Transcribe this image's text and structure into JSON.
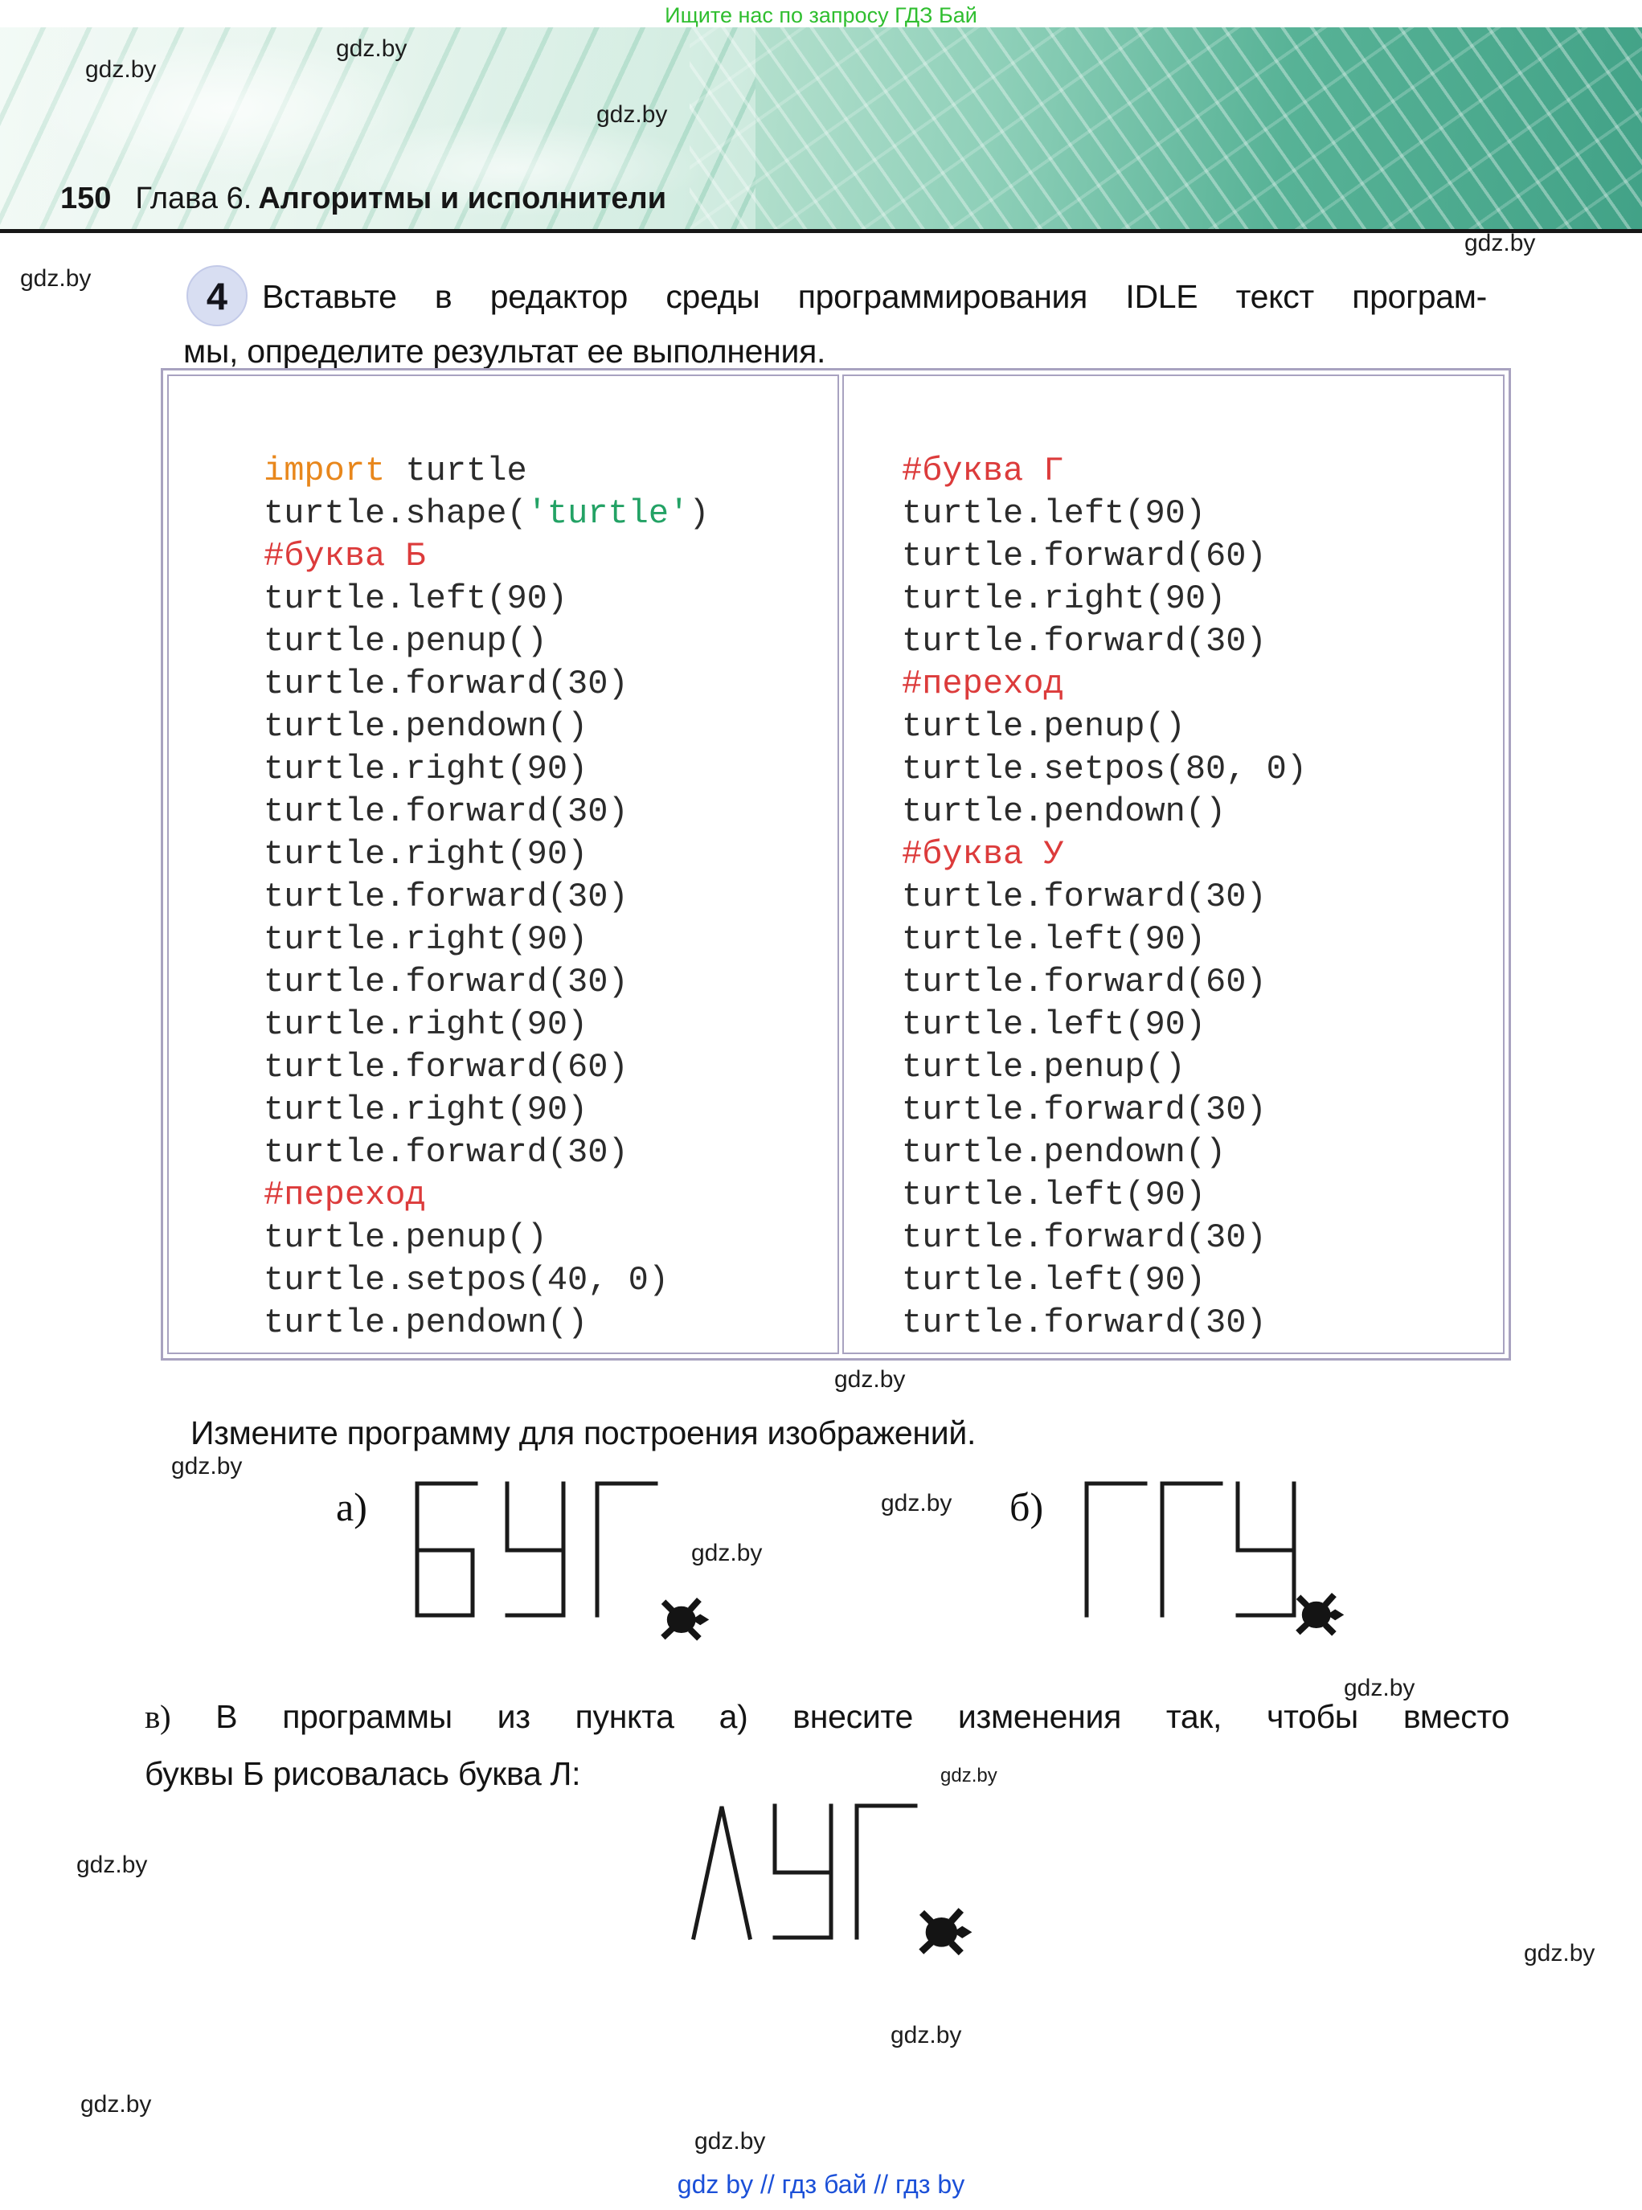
{
  "page": {
    "promo": "Ищите нас по запросу ГДЗ Бай",
    "page_number": "150",
    "chapter_prefix": "Глава 6.",
    "chapter_title": "Алгоритмы и исполнители",
    "watermark": "gdz.by",
    "footer_links": "gdz by  //  гдз бай  //  гдз by"
  },
  "task": {
    "number": "4",
    "line1": "Вставьте в редактор среды программирования IDLE текст програм-",
    "line2": "мы, определите результат ее выполнения.",
    "modify_line": "Измените программу для построения изображений.",
    "part_a_label": "а)",
    "part_b_label": "б)",
    "part_v_label": "в)",
    "part_v_line1": " В программы из пункта а) внесите изменения так, чтобы вместо",
    "part_v_line2": "буквы Б рисовалась буква Л:"
  },
  "code": {
    "palette": {
      "keyword": "#e8871c",
      "string": "#23a265",
      "comment": "#dc3b3b",
      "default": "#2b2b2b"
    },
    "left": [
      [
        {
          "t": "import",
          "c": "keyword"
        },
        {
          "t": " turtle"
        }
      ],
      [
        {
          "t": "turtle.shape("
        },
        {
          "t": "'turtle'",
          "c": "string"
        },
        {
          "t": ")"
        }
      ],
      [
        {
          "t": "#буква Б",
          "c": "comment"
        }
      ],
      [
        {
          "t": "turtle.left(90)"
        }
      ],
      [
        {
          "t": "turtle.penup()"
        }
      ],
      [
        {
          "t": "turtle.forward(30)"
        }
      ],
      [
        {
          "t": "turtle.pendown()"
        }
      ],
      [
        {
          "t": "turtle.right(90)"
        }
      ],
      [
        {
          "t": "turtle.forward(30)"
        }
      ],
      [
        {
          "t": "turtle.right(90)"
        }
      ],
      [
        {
          "t": "turtle.forward(30)"
        }
      ],
      [
        {
          "t": "turtle.right(90)"
        }
      ],
      [
        {
          "t": "turtle.forward(30)"
        }
      ],
      [
        {
          "t": "turtle.right(90)"
        }
      ],
      [
        {
          "t": "turtle.forward(60)"
        }
      ],
      [
        {
          "t": "turtle.right(90)"
        }
      ],
      [
        {
          "t": "turtle.forward(30)"
        }
      ],
      [
        {
          "t": "#переход",
          "c": "comment"
        }
      ],
      [
        {
          "t": "turtle.penup()"
        }
      ],
      [
        {
          "t": "turtle.setpos(40, 0)"
        }
      ],
      [
        {
          "t": "turtle.pendown()"
        }
      ]
    ],
    "right": [
      [
        {
          "t": "#буква Г",
          "c": "comment"
        }
      ],
      [
        {
          "t": "turtle.left(90)"
        }
      ],
      [
        {
          "t": "turtle.forward(60)"
        }
      ],
      [
        {
          "t": "turtle.right(90)"
        }
      ],
      [
        {
          "t": "turtle.forward(30)"
        }
      ],
      [
        {
          "t": "#переход",
          "c": "comment"
        }
      ],
      [
        {
          "t": "turtle.penup()"
        }
      ],
      [
        {
          "t": "turtle.setpos(80, 0)"
        }
      ],
      [
        {
          "t": "turtle.pendown()"
        }
      ],
      [
        {
          "t": "#буква У",
          "c": "comment"
        }
      ],
      [
        {
          "t": "turtle.forward(30)"
        }
      ],
      [
        {
          "t": "turtle.left(90)"
        }
      ],
      [
        {
          "t": "turtle.forward(60)"
        }
      ],
      [
        {
          "t": "turtle.left(90)"
        }
      ],
      [
        {
          "t": "turtle.penup()"
        }
      ],
      [
        {
          "t": "turtle.forward(30)"
        }
      ],
      [
        {
          "t": "turtle.pendown()"
        }
      ],
      [
        {
          "t": "turtle.left(90)"
        }
      ],
      [
        {
          "t": "turtle.forward(30)"
        }
      ],
      [
        {
          "t": "turtle.left(90)"
        }
      ],
      [
        {
          "t": "turtle.forward(30)"
        }
      ]
    ]
  },
  "drawings": {
    "a": {
      "letters": "БУГ"
    },
    "b": {
      "letters": "ГГУ"
    },
    "v": {
      "letters": "ЛУГ"
    }
  }
}
